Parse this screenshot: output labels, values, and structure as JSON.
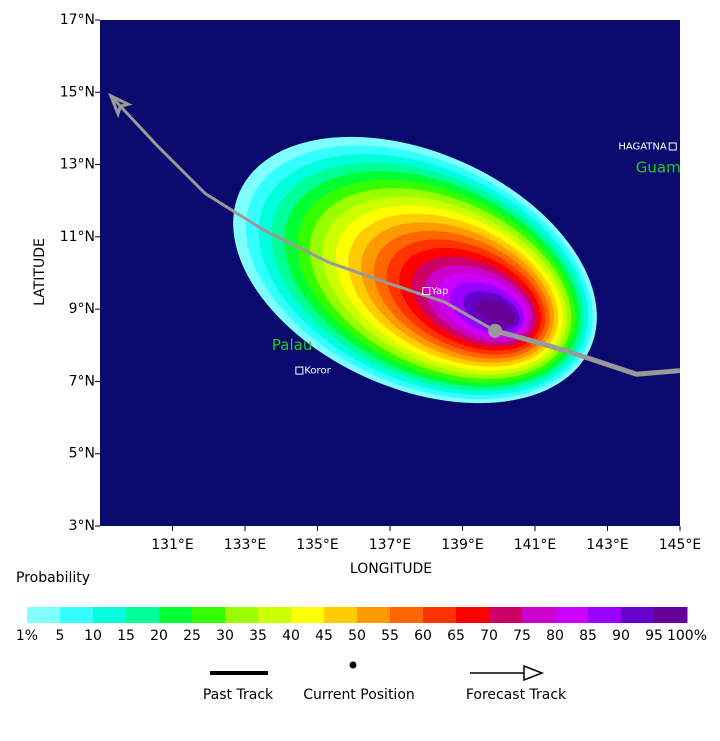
{
  "chart_data": {
    "type": "probability_map",
    "x_label": "LONGITUDE",
    "y_label": "LATITUDE",
    "xlim": [
      129,
      145
    ],
    "ylim": [
      3,
      17
    ],
    "xticks": [
      {
        "value": 131,
        "label": "131°E"
      },
      {
        "value": 133,
        "label": "133°E"
      },
      {
        "value": 135,
        "label": "135°E"
      },
      {
        "value": 137,
        "label": "137°E"
      },
      {
        "value": 139,
        "label": "139°E"
      },
      {
        "value": 141,
        "label": "141°E"
      },
      {
        "value": 143,
        "label": "143°E"
      },
      {
        "value": 145,
        "label": "145°E"
      }
    ],
    "yticks": [
      {
        "value": 3,
        "label": "3°N"
      },
      {
        "value": 5,
        "label": "5°N"
      },
      {
        "value": 7,
        "label": "7°N"
      },
      {
        "value": 9,
        "label": "9°N"
      },
      {
        "value": 11,
        "label": "11°N"
      },
      {
        "value": 13,
        "label": "13°N"
      },
      {
        "value": 15,
        "label": "15°N"
      },
      {
        "value": 17,
        "label": "17°N"
      }
    ],
    "background_color": "#0a0a6e",
    "forecast_track": {
      "name": "Forecast Track",
      "color": "#999999",
      "lon": [
        139.9,
        138.5,
        137.0,
        135.3,
        133.5,
        131.9,
        130.6,
        129.3
      ],
      "lat": [
        8.4,
        9.2,
        9.7,
        10.3,
        11.2,
        12.2,
        13.5,
        14.9
      ]
    },
    "past_track": {
      "name": "Past Track",
      "color": "#999999",
      "lon": [
        139.9,
        141.0,
        142.0,
        143.8,
        145.0
      ],
      "lat": [
        8.4,
        8.1,
        7.8,
        7.2,
        7.3
      ]
    },
    "current_position": {
      "name": "Current Position",
      "lon": 139.9,
      "lat": 8.4
    },
    "places": [
      {
        "label": "Yap",
        "lon": 138.0,
        "lat": 9.5,
        "style": "city"
      },
      {
        "label": "Koror",
        "lon": 134.5,
        "lat": 7.3,
        "style": "city"
      },
      {
        "label": "HAGATNA",
        "lon": 144.8,
        "lat": 13.5,
        "style": "city-left"
      },
      {
        "label": "Palau",
        "lon": 134.3,
        "lat": 8.0,
        "style": "region"
      },
      {
        "label": "Guam",
        "lon": 144.4,
        "lat": 12.9,
        "style": "region"
      }
    ],
    "legend_title": "Probability",
    "legend_colors": [
      "#80ffff",
      "#33ffff",
      "#00ffdd",
      "#00ff99",
      "#00ff33",
      "#33ff00",
      "#99ff00",
      "#ccff00",
      "#ffff00",
      "#ffcc00",
      "#ff9900",
      "#ff6600",
      "#ff3300",
      "#ff0000",
      "#cc0066",
      "#cc00cc",
      "#cc00ff",
      "#9900ff",
      "#6600cc",
      "#660099"
    ],
    "legend_labels": [
      "1%",
      "5",
      "10",
      "15",
      "20",
      "25",
      "30",
      "35",
      "40",
      "45",
      "50",
      "55",
      "60",
      "65",
      "70",
      "75",
      "80",
      "85",
      "90",
      "95",
      "100%"
    ]
  }
}
